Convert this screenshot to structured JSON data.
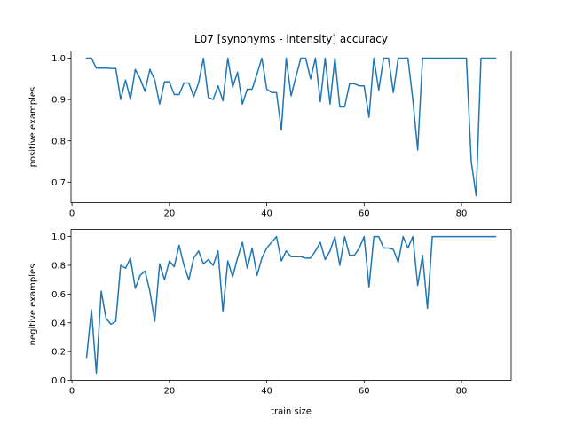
{
  "chart_data": [
    {
      "type": "line",
      "title": "L07 [synonyms - intensity] accuracy",
      "xlabel": "",
      "ylabel": "positive examples",
      "xlim": [
        -0.2,
        90.2
      ],
      "ylim": [
        0.65,
        1.017
      ],
      "xticks": [
        0,
        20,
        40,
        60,
        80
      ],
      "yticks": [
        0.7,
        0.8,
        0.9,
        1.0
      ],
      "ytick_labels": [
        "0.7",
        "0.8",
        "0.9",
        "1.0"
      ],
      "grid": false,
      "series": [
        {
          "color": "#1f77b4",
          "x": [
            3,
            4,
            5,
            6,
            7,
            8,
            9,
            10,
            11,
            12,
            13,
            14,
            15,
            16,
            17,
            18,
            19,
            20,
            21,
            22,
            23,
            24,
            25,
            26,
            27,
            28,
            29,
            30,
            31,
            32,
            33,
            34,
            35,
            36,
            37,
            38,
            39,
            40,
            41,
            42,
            43,
            44,
            45,
            46,
            47,
            48,
            49,
            50,
            51,
            52,
            53,
            54,
            55,
            56,
            57,
            58,
            59,
            60,
            61,
            62,
            63,
            64,
            65,
            66,
            67,
            68,
            69,
            70,
            71,
            72,
            73,
            74,
            75,
            76,
            77,
            78,
            79,
            80,
            81,
            82,
            83,
            84,
            85,
            86,
            87
          ],
          "y": [
            1.0,
            1.0,
            0.976,
            0.976,
            0.976,
            0.975,
            0.975,
            0.9,
            0.947,
            0.9,
            0.973,
            0.95,
            0.92,
            0.973,
            0.947,
            0.889,
            0.943,
            0.943,
            0.912,
            0.912,
            0.94,
            0.94,
            0.907,
            0.94,
            1.0,
            0.905,
            0.9,
            0.933,
            0.897,
            1.0,
            0.93,
            0.966,
            0.889,
            0.925,
            0.925,
            0.962,
            1.0,
            0.925,
            0.917,
            0.917,
            0.826,
            1.0,
            0.909,
            0.955,
            1.0,
            1.0,
            0.95,
            1.0,
            0.895,
            1.0,
            0.889,
            1.0,
            0.882,
            0.882,
            0.938,
            0.938,
            0.933,
            0.933,
            0.857,
            1.0,
            0.923,
            1.0,
            1.0,
            0.917,
            1.0,
            1.0,
            1.0,
            0.9,
            0.778,
            1.0,
            1.0,
            1.0,
            1.0,
            1.0,
            1.0,
            1.0,
            1.0,
            1.0,
            1.0,
            0.75,
            0.667,
            1.0,
            1.0,
            1.0,
            1.0
          ]
        }
      ]
    },
    {
      "type": "line",
      "title": "",
      "xlabel": "train size",
      "ylabel": "negitive examples",
      "xlim": [
        -0.2,
        90.2
      ],
      "ylim": [
        0.0,
        1.05
      ],
      "xticks": [
        0,
        20,
        40,
        60,
        80
      ],
      "yticks": [
        0.0,
        0.2,
        0.4,
        0.6,
        0.8,
        1.0
      ],
      "ytick_labels": [
        "0.0",
        "0.2",
        "0.4",
        "0.6",
        "0.8",
        "1.0"
      ],
      "grid": false,
      "series": [
        {
          "color": "#1f77b4",
          "x": [
            3,
            4,
            5,
            6,
            7,
            8,
            9,
            10,
            11,
            12,
            13,
            14,
            15,
            16,
            17,
            18,
            19,
            20,
            21,
            22,
            23,
            24,
            25,
            26,
            27,
            28,
            29,
            30,
            31,
            32,
            33,
            34,
            35,
            36,
            37,
            38,
            39,
            40,
            41,
            42,
            43,
            44,
            45,
            46,
            47,
            48,
            49,
            50,
            51,
            52,
            53,
            54,
            55,
            56,
            57,
            58,
            59,
            60,
            61,
            62,
            63,
            64,
            65,
            66,
            67,
            68,
            69,
            70,
            71,
            72,
            73,
            74,
            75,
            76,
            77,
            78,
            79,
            80,
            81,
            82,
            83,
            84,
            85,
            86,
            87
          ],
          "y": [
            0.16,
            0.49,
            0.05,
            0.62,
            0.43,
            0.39,
            0.41,
            0.8,
            0.78,
            0.85,
            0.64,
            0.73,
            0.76,
            0.62,
            0.41,
            0.81,
            0.7,
            0.83,
            0.79,
            0.94,
            0.8,
            0.7,
            0.85,
            0.9,
            0.81,
            0.84,
            0.8,
            0.9,
            0.48,
            0.83,
            0.72,
            0.85,
            0.96,
            0.78,
            0.92,
            0.73,
            0.85,
            0.92,
            0.96,
            1.0,
            0.83,
            0.9,
            0.86,
            0.86,
            0.86,
            0.85,
            0.85,
            0.9,
            0.96,
            0.84,
            0.9,
            1.0,
            0.8,
            1.0,
            0.87,
            0.87,
            0.92,
            1.0,
            0.65,
            1.0,
            1.0,
            0.92,
            0.92,
            0.91,
            0.82,
            1.0,
            0.92,
            1.0,
            0.66,
            0.87,
            0.5,
            1.0,
            1.0,
            1.0,
            1.0,
            1.0,
            1.0,
            1.0,
            1.0,
            1.0,
            1.0,
            1.0,
            1.0,
            1.0,
            1.0
          ]
        }
      ]
    }
  ]
}
